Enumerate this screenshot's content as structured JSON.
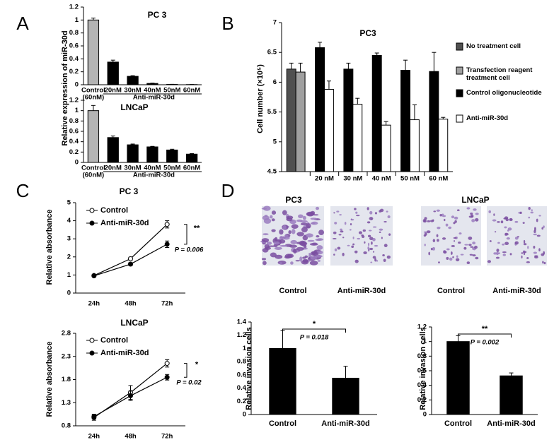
{
  "chart_data": [
    {
      "type": "bar",
      "panel": "A",
      "title": "PC 3",
      "y_label": "Relative expression of miR-30d",
      "categories": [
        "Control",
        "20nM",
        "30nM",
        "40nM",
        "50nM",
        "60nM"
      ],
      "category_note": "(60nM)",
      "group_label": "Anti-miR-30d",
      "values": [
        1.0,
        0.35,
        0.13,
        0.02,
        0.005,
        0.003
      ],
      "errors": [
        0.03,
        0.03,
        0.01,
        0.005,
        0.002,
        0.001
      ],
      "colors": [
        "#b4b4b4",
        "#000000",
        "#000000",
        "#000000",
        "#000000",
        "#000000"
      ],
      "ylim": [
        0,
        1.2
      ],
      "yticks": [
        0,
        0.2,
        0.4,
        0.6,
        0.8,
        1,
        1.2
      ]
    },
    {
      "type": "bar",
      "title": "LNCaP",
      "categories": [
        "Control",
        "20nM",
        "30nM",
        "40nM",
        "50nM",
        "60nM"
      ],
      "category_note": "(60nM)",
      "group_label": "Anti-miR-30d",
      "values": [
        1.0,
        0.48,
        0.34,
        0.3,
        0.24,
        0.16
      ],
      "errors": [
        0.1,
        0.03,
        0.015,
        0.01,
        0.015,
        0.01
      ],
      "colors": [
        "#b4b4b4",
        "#000000",
        "#000000",
        "#000000",
        "#000000",
        "#000000"
      ],
      "ylim": [
        0,
        1.2
      ],
      "yticks": [
        0,
        0.2,
        0.4,
        0.6,
        0.8,
        1,
        1.2
      ]
    },
    {
      "type": "bar",
      "panel": "B",
      "title": "PC3",
      "y_label": "Cell number (×10⁵)",
      "categories": [
        null,
        "20 nM",
        "30 nM",
        "40 nM",
        "50 nM",
        "60 nM"
      ],
      "series": [
        {
          "name": "No treatment cell",
          "color": "#505050",
          "values": [
            6.22,
            null,
            null,
            null,
            null,
            null
          ],
          "errors": [
            0.1,
            null,
            null,
            null,
            null,
            null
          ]
        },
        {
          "name": "Transfection reagent treatment cell",
          "color": "#a0a0a0",
          "values": [
            6.17,
            null,
            null,
            null,
            null,
            null
          ],
          "errors": [
            0.15,
            null,
            null,
            null,
            null,
            null
          ]
        },
        {
          "name": "Control oligonucleotide",
          "color": "#000000",
          "values": [
            null,
            6.58,
            6.22,
            6.45,
            6.2,
            6.18
          ],
          "errors": [
            null,
            0.09,
            0.1,
            0.04,
            0.17,
            0.32
          ]
        },
        {
          "name": "Anti-miR-30d",
          "color": "#ffffff",
          "values": [
            null,
            5.88,
            5.63,
            5.28,
            5.37,
            5.38
          ],
          "errors": [
            null,
            0.14,
            0.1,
            0.06,
            0.25,
            0.03
          ]
        }
      ],
      "ylim": [
        4.5,
        7
      ],
      "yticks": [
        4.5,
        5,
        5.5,
        6,
        6.5,
        7
      ],
      "legend": "right"
    },
    {
      "type": "line",
      "panel": "C",
      "title": "PC 3",
      "y_label": "Relative absorbance",
      "categories": [
        "24h",
        "48h",
        "72h"
      ],
      "series": [
        {
          "name": "Control",
          "color": "#000000",
          "marker": "open",
          "values": [
            0.97,
            1.9,
            3.8
          ],
          "errors": [
            0.05,
            0.08,
            0.2
          ]
        },
        {
          "name": "Anti-miR-30d",
          "color": "#000000",
          "marker": "filled",
          "values": [
            0.95,
            1.6,
            2.7
          ],
          "errors": [
            0.05,
            0.08,
            0.18
          ]
        }
      ],
      "ylim": [
        0,
        5
      ],
      "yticks": [
        0,
        1,
        2,
        3,
        4,
        5
      ],
      "significance": "**",
      "p_value": "P = 0.006"
    },
    {
      "type": "line",
      "title": "LNCaP",
      "y_label": "Relative absorbance",
      "categories": [
        "24h",
        "48h",
        "72h"
      ],
      "series": [
        {
          "name": "Control",
          "color": "#000000",
          "marker": "open",
          "values": [
            0.98,
            1.52,
            2.15
          ],
          "errors": [
            0.06,
            0.15,
            0.08
          ]
        },
        {
          "name": "Anti-miR-30d",
          "color": "#000000",
          "marker": "filled",
          "values": [
            1.0,
            1.45,
            1.85
          ],
          "errors": [
            0.05,
            0.1,
            0.06
          ]
        }
      ],
      "ylim": [
        0.8,
        2.8
      ],
      "yticks": [
        0.8,
        1.3,
        1.8,
        2.3,
        2.8
      ],
      "significance": "*",
      "p_value": "P = 0.02"
    },
    {
      "type": "bar",
      "panel": "D",
      "title": "PC3",
      "image_labels": [
        "Control",
        "Anti-miR-30d"
      ],
      "y_label": "Relative invasion cells",
      "categories": [
        "Control",
        "Anti-miR-30d"
      ],
      "values": [
        1.0,
        0.55
      ],
      "errors": [
        0.27,
        0.18
      ],
      "color": "#000000",
      "ylim": [
        0,
        1.4
      ],
      "yticks": [
        0,
        0.2,
        0.4,
        0.6,
        0.8,
        1,
        1.2,
        1.4
      ],
      "significance": "*",
      "p_value": "P = 0.018"
    },
    {
      "type": "bar",
      "title": "LNCaP",
      "image_labels": [
        "Control",
        "Anti-miR-30d"
      ],
      "y_label": "Relative invasion cells",
      "categories": [
        "Control",
        "Anti-miR-30d"
      ],
      "values": [
        1.0,
        0.53
      ],
      "errors": [
        0.08,
        0.04
      ],
      "color": "#000000",
      "ylim": [
        0,
        1.2
      ],
      "yticks": [
        0,
        0.2,
        0.4,
        0.6,
        0.8,
        1,
        1.2
      ],
      "significance": "**",
      "p_value": "P = 0.002"
    }
  ]
}
